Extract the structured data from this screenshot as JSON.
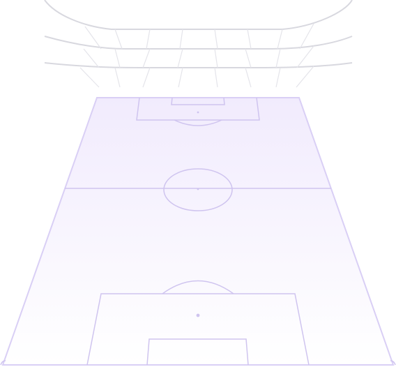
{
  "scene": {
    "colors": {
      "pitch_top": "#f1ebfd",
      "pitch_bottom": "#ffffff",
      "pitch_lines": "#cfc4ef",
      "stands": "#d8d8df"
    }
  }
}
